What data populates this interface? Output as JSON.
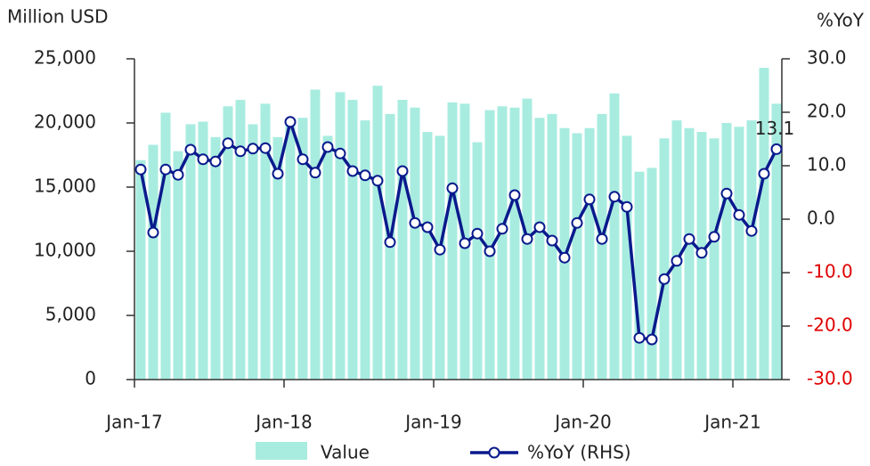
{
  "chart_data": {
    "type": "bar_line",
    "y_label": "Million USD",
    "y2_label": "%YoY",
    "categories": [
      "Jan-17",
      null,
      null,
      null,
      null,
      null,
      null,
      null,
      null,
      null,
      null,
      null,
      "Jan-18",
      null,
      null,
      null,
      null,
      null,
      null,
      null,
      null,
      null,
      null,
      null,
      "Jan-19",
      null,
      null,
      null,
      null,
      null,
      null,
      null,
      null,
      null,
      null,
      null,
      "Jan-20",
      null,
      null,
      null,
      null,
      null,
      null,
      null,
      null,
      null,
      null,
      null,
      "Jan-21",
      null,
      null,
      null
    ],
    "series": [
      {
        "name": "Value",
        "type": "bar",
        "color": "#a8ece0",
        "values": [
          17.1,
          18.3,
          20.8,
          17.8,
          19.9,
          20.1,
          18.9,
          21.3,
          21.8,
          19.9,
          21.5,
          18.9,
          20.0,
          20.4,
          22.6,
          19.0,
          22.4,
          21.8,
          20.2,
          22.9,
          20.7,
          21.8,
          21.2,
          19.3,
          19.0,
          21.6,
          21.5,
          18.5,
          21.0,
          21.3,
          21.2,
          21.9,
          20.4,
          20.7,
          19.6,
          19.2,
          19.6,
          20.7,
          22.3,
          19.0,
          16.2,
          16.5,
          18.8,
          20.2,
          19.6,
          19.3,
          18.8,
          20.0,
          19.7,
          20.2,
          24.3,
          21.5
        ]
      },
      {
        "name": "%YoY (RHS)",
        "type": "line",
        "axis": "y2",
        "color": "#0a1a8c",
        "values": [
          9.3,
          -2.5,
          9.3,
          8.3,
          13.0,
          11.2,
          10.8,
          14.2,
          12.7,
          13.2,
          13.3,
          8.5,
          18.2,
          11.2,
          8.7,
          13.5,
          12.3,
          9.0,
          8.2,
          7.2,
          -4.3,
          9.0,
          -0.7,
          -1.5,
          -5.7,
          5.8,
          -4.5,
          -2.7,
          -6.0,
          -1.8,
          4.5,
          -3.7,
          -1.5,
          -4.0,
          -7.2,
          -0.7,
          3.7,
          -3.7,
          4.2,
          2.3,
          -22.2,
          -22.5,
          -11.2,
          -7.8,
          -3.7,
          -6.3,
          -3.3,
          4.8,
          0.8,
          -2.2,
          8.5,
          13.1
        ],
        "value_labels": [
          null,
          null,
          null,
          null,
          null,
          null,
          null,
          null,
          null,
          null,
          null,
          null,
          null,
          null,
          null,
          null,
          null,
          null,
          null,
          null,
          null,
          null,
          null,
          null,
          null,
          null,
          null,
          null,
          null,
          null,
          null,
          null,
          null,
          null,
          null,
          null,
          null,
          null,
          null,
          null,
          null,
          null,
          null,
          null,
          null,
          null,
          null,
          null,
          null,
          null,
          null,
          "13.1"
        ]
      }
    ],
    "ylim": [
      0,
      25000
    ],
    "yticks": [
      {
        "value": 0,
        "label": "0"
      },
      {
        "value": 5000,
        "label": "5,000"
      },
      {
        "value": 10000,
        "label": "10,000"
      },
      {
        "value": 15000,
        "label": "15,000"
      },
      {
        "value": 20000,
        "label": "20,000"
      },
      {
        "value": 25000,
        "label": "25,000"
      }
    ],
    "y2lim": [
      -30,
      30
    ],
    "y2ticks": [
      {
        "value": 30,
        "label": "30.0"
      },
      {
        "value": 20,
        "label": "20.0"
      },
      {
        "value": 10,
        "label": "10.0"
      },
      {
        "value": 0,
        "label": "0.0"
      },
      {
        "value": -10,
        "label": "-10.0"
      },
      {
        "value": -20,
        "label": "-20.0"
      },
      {
        "value": -30,
        "label": "-30.0"
      }
    ],
    "y2_negative_color": "#e00000",
    "legend": "bottom"
  }
}
